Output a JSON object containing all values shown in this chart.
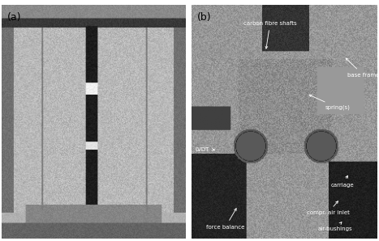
{
  "figure_width": 4.67,
  "figure_height": 2.98,
  "dpi": 100,
  "panel_a_label": "(a)",
  "panel_b_label": "(b)",
  "bg_color": "#ffffff",
  "label_color": "black",
  "annotation_color": "white",
  "annotation_fontsize": 5.0,
  "label_fontsize": 9,
  "annotations": [
    {
      "label": "force balance",
      "tpos": [
        0.08,
        0.05
      ],
      "apos": [
        0.25,
        0.14
      ]
    },
    {
      "label": "air-bushings",
      "tpos": [
        0.68,
        0.04
      ],
      "apos": [
        0.82,
        0.08
      ]
    },
    {
      "label": "compr. air inlet",
      "tpos": [
        0.62,
        0.11
      ],
      "apos": [
        0.8,
        0.17
      ]
    },
    {
      "label": "carriage",
      "tpos": [
        0.75,
        0.23
      ],
      "apos": [
        0.85,
        0.28
      ]
    },
    {
      "label": "LVDT",
      "tpos": [
        0.02,
        0.38
      ],
      "apos": [
        0.14,
        0.38
      ]
    },
    {
      "label": "spring(s)",
      "tpos": [
        0.72,
        0.56
      ],
      "apos": [
        0.62,
        0.62
      ]
    },
    {
      "label": "base frame",
      "tpos": [
        0.84,
        0.7
      ],
      "apos": [
        0.82,
        0.78
      ]
    },
    {
      "label": "carbon fibre shafts",
      "tpos": [
        0.28,
        0.92
      ],
      "apos": [
        0.4,
        0.8
      ]
    }
  ]
}
